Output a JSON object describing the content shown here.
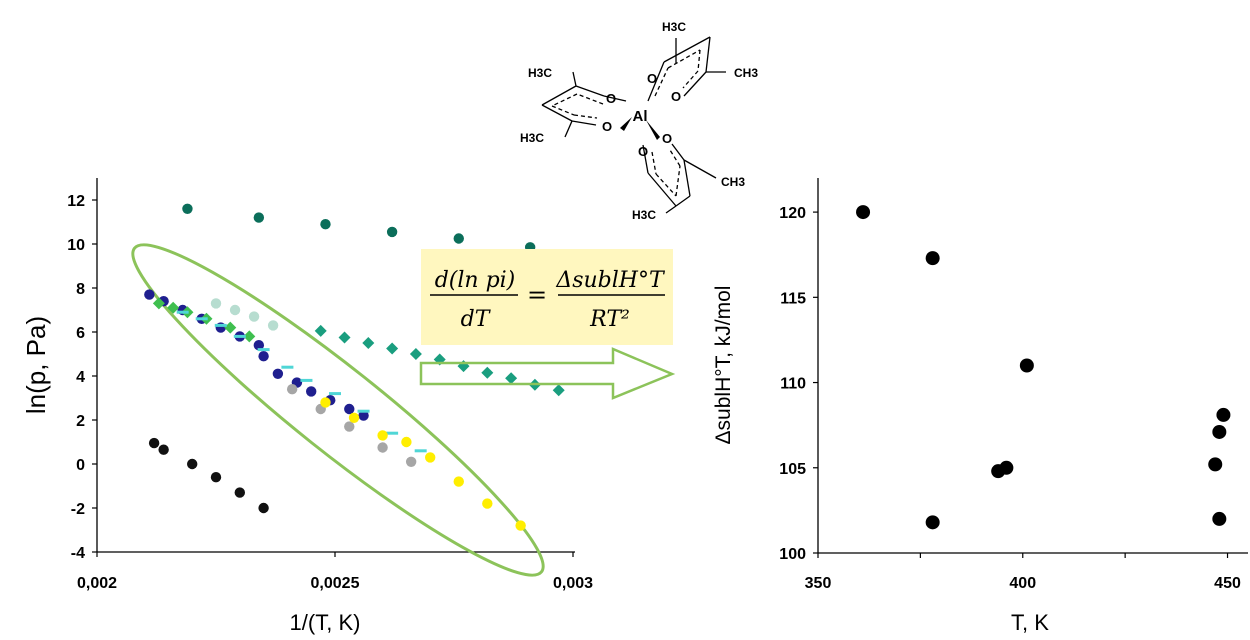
{
  "chart_data": [
    {
      "type": "scatter",
      "xlabel": "1/(T, K)",
      "ylabel": "ln(p, Pa)",
      "xlim": [
        0.002,
        0.003
      ],
      "ylim": [
        -4,
        13
      ],
      "x_ticks": [
        "0,002",
        "0,0025",
        "0,003"
      ],
      "y_ticks": [
        "-4",
        "-2",
        "0",
        "2",
        "4",
        "6",
        "8",
        "10",
        "12"
      ],
      "series": [
        {
          "marker": "circle",
          "color": "#0b6e5a",
          "x": [
            0.00219,
            0.00234,
            0.00248,
            0.00262,
            0.00276,
            0.00291
          ],
          "y": [
            11.6,
            11.2,
            10.9,
            10.55,
            10.25,
            9.85
          ]
        },
        {
          "marker": "circle",
          "color": "#111111",
          "x": [
            0.00212,
            0.00214,
            0.0022,
            0.00225,
            0.0023,
            0.00235
          ],
          "y": [
            0.95,
            0.65,
            0.0,
            -0.6,
            -1.3,
            -2.0
          ]
        },
        {
          "marker": "diamond",
          "color": "#1a9e7f",
          "x": [
            0.00247,
            0.00252,
            0.00257,
            0.00262,
            0.00267,
            0.00272,
            0.00277,
            0.00282,
            0.00287,
            0.00292,
            0.00297
          ],
          "y": [
            6.05,
            5.75,
            5.5,
            5.25,
            5.0,
            4.75,
            4.45,
            4.15,
            3.9,
            3.6,
            3.35
          ]
        },
        {
          "marker": "circle",
          "color": "#1f1f8f",
          "x": [
            0.00211,
            0.00214,
            0.00218,
            0.00222,
            0.00226,
            0.0023,
            0.00234,
            0.00235,
            0.00238,
            0.00242,
            0.00245,
            0.00249,
            0.00253,
            0.00256
          ],
          "y": [
            7.7,
            7.4,
            7.0,
            6.6,
            6.2,
            5.8,
            5.4,
            4.9,
            4.1,
            3.7,
            3.3,
            2.9,
            2.5,
            2.2
          ]
        },
        {
          "marker": "circle",
          "color": "#b7ddd0",
          "x": [
            0.00225,
            0.00229,
            0.00233,
            0.00237
          ],
          "y": [
            7.3,
            7.0,
            6.7,
            6.3
          ]
        },
        {
          "marker": "diamond",
          "color": "#3fbf4f",
          "x": [
            0.00213,
            0.00216,
            0.00219,
            0.00223,
            0.00228,
            0.00232
          ],
          "y": [
            7.3,
            7.1,
            6.9,
            6.6,
            6.2,
            5.8
          ]
        },
        {
          "marker": "dash",
          "color": "#4fd6d6",
          "x": [
            0.00218,
            0.00222,
            0.00226,
            0.0023,
            0.00235,
            0.0024,
            0.00244,
            0.0025,
            0.00256,
            0.00262,
            0.00268
          ],
          "y": [
            6.9,
            6.6,
            6.3,
            5.8,
            5.2,
            4.4,
            3.8,
            3.2,
            2.4,
            1.4,
            0.6
          ]
        },
        {
          "marker": "circle",
          "color": "#a6a6a6",
          "x": [
            0.00241,
            0.00247,
            0.00253,
            0.0026,
            0.00266
          ],
          "y": [
            3.4,
            2.5,
            1.7,
            0.75,
            0.1
          ]
        },
        {
          "marker": "circle",
          "color": "#ffee00",
          "x": [
            0.00248,
            0.00254,
            0.0026,
            0.00265,
            0.0027,
            0.00276,
            0.00282,
            0.00289
          ],
          "y": [
            2.8,
            2.1,
            1.3,
            1.0,
            0.3,
            -0.8,
            -1.8,
            -2.8
          ]
        }
      ]
    },
    {
      "type": "scatter",
      "xlabel": "T, K",
      "ylabel": "ΔsublH°T, kJ/mol",
      "xlim": [
        350,
        455
      ],
      "ylim": [
        100,
        122
      ],
      "x_ticks": [
        "350",
        "400",
        "450"
      ],
      "y_ticks": [
        "100",
        "105",
        "110",
        "115",
        "120"
      ],
      "series": [
        {
          "marker": "circle",
          "color": "#000000",
          "x": [
            361,
            378,
            378,
            394,
            396,
            401,
            447,
            448,
            448,
            449
          ],
          "y": [
            120.0,
            117.3,
            101.8,
            104.8,
            105.0,
            111.0,
            105.2,
            107.1,
            102.0,
            108.1
          ]
        }
      ]
    }
  ],
  "equation": {
    "lhs_num": "d(ln pi)",
    "lhs_den": "dT",
    "rhs_num": "ΔsublH°T",
    "rhs_den": "RT²"
  },
  "molecule": {
    "methyl": "H3C",
    "methyl_right": "CH3",
    "oxygen": "O",
    "metal": "Al"
  },
  "colors": {
    "ellipse": "#8cc35a",
    "arrow": "#8cc35a",
    "equation_bg": "#fff7bf"
  }
}
